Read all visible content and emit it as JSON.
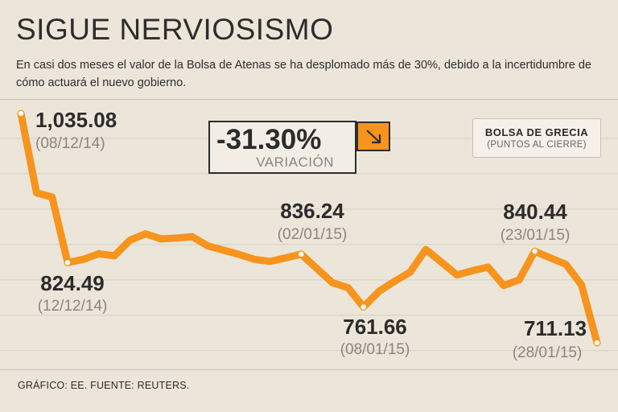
{
  "header": {
    "title": "SIGUE NERVIOSISMO",
    "subtitle": "En casi dos meses el valor de la Bolsa de Atenas se ha desplomado más de 30%, debido a la incertidumbre de cómo actuará el nuevo gobierno."
  },
  "variation": {
    "value": "-31.30%",
    "label": "VARIACIÓN"
  },
  "legend": {
    "title": "BOLSA DE GRECIA",
    "subtitle": "(PUNTOS AL CIERRE)"
  },
  "source": "GRÁFICO: EE. FUENTE: REUTERS.",
  "colors": {
    "line": "#f6941e",
    "background": "#ece6da",
    "text": "#2b2b2b",
    "muted": "#8a8580"
  },
  "chart_data": {
    "type": "line",
    "title": "SIGUE NERVIOSISMO",
    "series": [
      {
        "name": "BOLSA DE GRECIA (PUNTOS AL CIERRE)",
        "values": [
          1035.08,
          923,
          917,
          824.49,
          829,
          837,
          834,
          856,
          865,
          858,
          859,
          861,
          848,
          842,
          836,
          829,
          826,
          831,
          836.24,
          816,
          796,
          789,
          761.66,
          784,
          798,
          811,
          843,
          825,
          807,
          813,
          818,
          792,
          800,
          840.44,
          831,
          822,
          793,
          711.13
        ]
      }
    ],
    "annotations": [
      {
        "index": 0,
        "value": "1,035.08",
        "date": "(08/12/14)"
      },
      {
        "index": 3,
        "value": "824.49",
        "date": "(12/12/14)"
      },
      {
        "index": 18,
        "value": "836.24",
        "date": "(02/01/15)"
      },
      {
        "index": 22,
        "value": "761.66",
        "date": "(08/01/15)"
      },
      {
        "index": 33,
        "value": "840.44",
        "date": "(23/01/15)"
      },
      {
        "index": 37,
        "value": "711.13",
        "date": "(28/01/15)"
      }
    ],
    "xlabel": "",
    "ylabel": "",
    "ylim": [
      700,
      1040
    ],
    "grid": true
  }
}
